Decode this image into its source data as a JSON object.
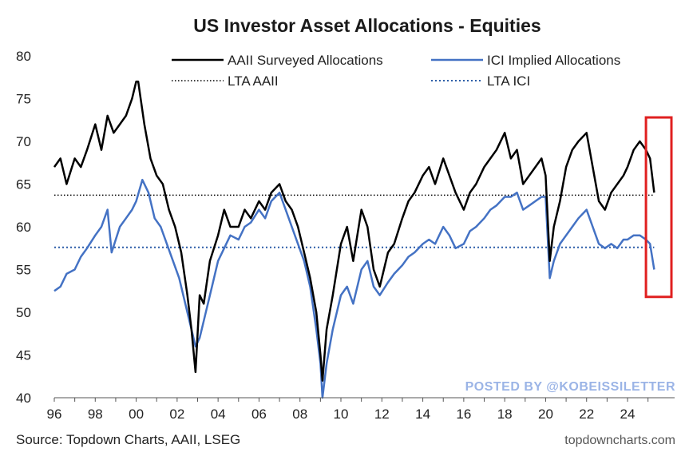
{
  "colors": {
    "aaii": "#000000",
    "ici": "#4472c4",
    "lta_ici": "#2e5fa8",
    "highlight_box": "#e02020",
    "watermark": "#9bb4e6"
  },
  "source_text": "Source: Topdown Charts, AAII, LSEG",
  "site_text": "topdowncharts.com",
  "watermark_text": "POSTED BY @KOBEISSILETTER",
  "chart_data": {
    "type": "line",
    "title": "US Investor Asset Allocations - Equities",
    "xlabel": "",
    "ylabel": "",
    "xlim": [
      1996,
      2026.3
    ],
    "ylim": [
      40,
      80
    ],
    "xticks": [
      1996,
      1998,
      2000,
      2002,
      2004,
      2006,
      2008,
      2010,
      2012,
      2014,
      2016,
      2018,
      2020,
      2022,
      2024
    ],
    "xtick_labels": [
      "96",
      "98",
      "00",
      "02",
      "04",
      "06",
      "08",
      "10",
      "12",
      "14",
      "16",
      "18",
      "20",
      "22",
      "24"
    ],
    "yticks": [
      40,
      45,
      50,
      55,
      60,
      65,
      70,
      75,
      80
    ],
    "ytick_labels": [
      "40",
      "45",
      "50",
      "55",
      "60",
      "65",
      "70",
      "75",
      "80"
    ],
    "legend_position": "top",
    "legend": [
      "AAII Surveyed Allocations",
      "ICI Implied Allocations",
      "LTA AAII",
      "LTA ICI"
    ],
    "highlight": {
      "x_range": [
        2024.9,
        2026.3
      ],
      "y_range": [
        51.8,
        72.8
      ]
    },
    "series": [
      {
        "name": "AAII Surveyed Allocations",
        "style": "solid",
        "x": [
          1996.0,
          1996.3,
          1996.6,
          1997.0,
          1997.3,
          1997.6,
          1998.0,
          1998.3,
          1998.6,
          1998.9,
          1999.2,
          1999.5,
          1999.8,
          2000.0,
          2000.1,
          2000.4,
          2000.7,
          2001.0,
          2001.3,
          2001.6,
          2001.9,
          2002.2,
          2002.5,
          2002.7,
          2002.9,
          2003.1,
          2003.3,
          2003.6,
          2004.0,
          2004.3,
          2004.6,
          2005.0,
          2005.3,
          2005.6,
          2006.0,
          2006.3,
          2006.6,
          2007.0,
          2007.3,
          2007.6,
          2007.9,
          2008.2,
          2008.5,
          2008.8,
          2009.0,
          2009.1,
          2009.3,
          2009.6,
          2010.0,
          2010.3,
          2010.6,
          2011.0,
          2011.3,
          2011.6,
          2011.9,
          2012.3,
          2012.6,
          2013.0,
          2013.3,
          2013.6,
          2014.0,
          2014.3,
          2014.6,
          2015.0,
          2015.3,
          2015.6,
          2016.0,
          2016.3,
          2016.6,
          2017.0,
          2017.3,
          2017.6,
          2018.0,
          2018.3,
          2018.6,
          2018.9,
          2019.2,
          2019.5,
          2019.8,
          2020.0,
          2020.2,
          2020.4,
          2020.7,
          2021.0,
          2021.3,
          2021.6,
          2022.0,
          2022.3,
          2022.6,
          2022.9,
          2023.2,
          2023.5,
          2023.8,
          2024.0,
          2024.3,
          2024.6,
          2024.9,
          2025.1,
          2025.3
        ],
        "values": [
          67,
          68,
          65,
          68,
          67,
          69,
          72,
          69,
          73,
          71,
          72,
          73,
          75,
          77,
          77,
          72,
          68,
          66,
          65,
          62,
          60,
          57,
          52,
          48,
          43,
          52,
          51,
          56,
          59,
          62,
          60,
          60,
          62,
          61,
          63,
          62,
          64,
          65,
          63,
          62,
          60,
          57,
          54,
          50,
          45,
          42,
          48,
          52,
          58,
          60,
          56,
          62,
          60,
          55,
          53,
          57,
          58,
          61,
          63,
          64,
          66,
          67,
          65,
          68,
          66,
          64,
          62,
          64,
          65,
          67,
          68,
          69,
          71,
          68,
          69,
          65,
          66,
          67,
          68,
          66,
          56,
          60,
          63,
          67,
          69,
          70,
          71,
          67,
          63,
          62,
          64,
          65,
          66,
          67,
          69,
          70,
          69,
          68,
          64
        ]
      },
      {
        "name": "ICI Implied Allocations",
        "style": "solid",
        "x": [
          1996.0,
          1996.3,
          1996.6,
          1997.0,
          1997.3,
          1997.6,
          1998.0,
          1998.3,
          1998.6,
          1998.8,
          1999.2,
          1999.5,
          1999.8,
          2000.0,
          2000.3,
          2000.6,
          2000.9,
          2001.2,
          2001.5,
          2001.8,
          2002.1,
          2002.4,
          2002.7,
          2002.9,
          2003.1,
          2003.4,
          2003.7,
          2004.0,
          2004.3,
          2004.6,
          2005.0,
          2005.3,
          2005.6,
          2006.0,
          2006.3,
          2006.6,
          2007.0,
          2007.3,
          2007.6,
          2007.9,
          2008.2,
          2008.5,
          2008.8,
          2009.0,
          2009.1,
          2009.3,
          2009.6,
          2010.0,
          2010.3,
          2010.6,
          2011.0,
          2011.3,
          2011.6,
          2011.9,
          2012.3,
          2012.6,
          2013.0,
          2013.3,
          2013.6,
          2014.0,
          2014.3,
          2014.6,
          2015.0,
          2015.3,
          2015.6,
          2016.0,
          2016.3,
          2016.6,
          2017.0,
          2017.3,
          2017.6,
          2018.0,
          2018.3,
          2018.6,
          2018.9,
          2019.2,
          2019.5,
          2019.8,
          2020.0,
          2020.2,
          2020.4,
          2020.7,
          2021.0,
          2021.3,
          2021.6,
          2022.0,
          2022.3,
          2022.6,
          2022.9,
          2023.2,
          2023.5,
          2023.8,
          2024.0,
          2024.3,
          2024.6,
          2024.9,
          2025.1,
          2025.3
        ],
        "values": [
          52.5,
          53,
          54.5,
          55,
          56.5,
          57.5,
          59,
          60,
          62,
          57,
          60,
          61,
          62,
          63,
          65.5,
          64,
          61,
          60,
          58,
          56,
          54,
          51,
          48,
          46,
          47,
          50,
          53,
          56,
          57.5,
          59,
          58.5,
          60,
          60.5,
          62,
          61,
          63,
          64,
          62,
          60,
          58,
          56,
          53,
          48,
          44,
          40,
          44,
          48,
          52,
          53,
          51,
          55,
          56,
          53,
          52,
          53.5,
          54.5,
          55.5,
          56.5,
          57,
          58,
          58.5,
          58,
          60,
          59,
          57.5,
          58,
          59.5,
          60,
          61,
          62,
          62.5,
          63.5,
          63.5,
          64,
          62,
          62.5,
          63,
          63.5,
          63.5,
          54,
          56,
          58,
          59,
          60,
          61,
          62,
          60,
          58,
          57.5,
          58,
          57.5,
          58.5,
          58.5,
          59,
          59,
          58.5,
          58,
          55
        ]
      },
      {
        "name": "LTA AAII",
        "style": "dotted",
        "x": [
          1996.0,
          2025.3
        ],
        "values": [
          63.7,
          63.7
        ]
      },
      {
        "name": "LTA ICI",
        "style": "dotted",
        "x": [
          1996.0,
          2025.3
        ],
        "values": [
          57.6,
          57.6
        ]
      }
    ]
  }
}
